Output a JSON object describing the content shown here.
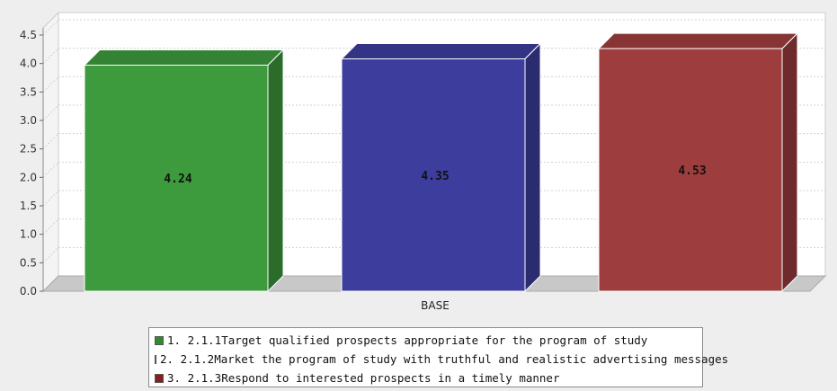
{
  "chart_data": {
    "type": "bar",
    "categories": [
      "BASE"
    ],
    "ylim": [
      0,
      4.5
    ],
    "yticks": [
      0.0,
      0.5,
      1.0,
      1.5,
      2.0,
      2.5,
      3.0,
      3.5,
      4.0,
      4.5
    ],
    "ytick_labels": [
      "0.0",
      "0.5",
      "1.0",
      "1.5",
      "2.0",
      "2.5",
      "3.0",
      "3.5",
      "4.0",
      "4.5"
    ],
    "grid": true,
    "legend_position": "bottom",
    "series": [
      {
        "name": "1. 2.1.1Target qualified prospects appropriate for the program of study",
        "values": [
          4.24
        ],
        "data_label": "4.24",
        "color": "#3d9a3d"
      },
      {
        "name": "2. 2.1.2Market the program of study with truthful and realistic advertising messages",
        "values": [
          4.35
        ],
        "data_label": "4.35",
        "color": "#3d3d9e"
      },
      {
        "name": "3. 2.1.3Respond to interested prospects in a timely manner",
        "values": [
          4.53
        ],
        "data_label": "4.53",
        "color": "#9e3d3d"
      }
    ]
  },
  "legend": {
    "items": [
      {
        "label": "1. 2.1.1Target qualified prospects appropriate for the program of study",
        "color": "#2e8b2e"
      },
      {
        "label": "2. 2.1.2Market the program of study with truthful and realistic advertising messages",
        "color": "#1e1e8a"
      },
      {
        "label": "3. 2.1.3Respond to interested prospects in a timely manner",
        "color": "#8a1e1e"
      }
    ]
  }
}
